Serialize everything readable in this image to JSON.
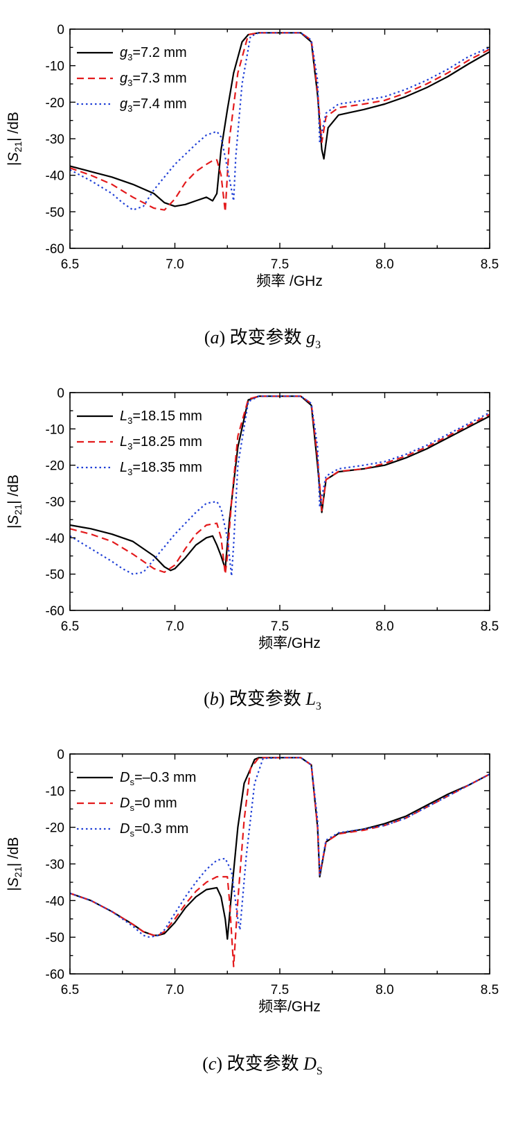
{
  "chart_data": [
    {
      "type": "line",
      "xlabel": "频率 /GHz",
      "ylabel_parts": {
        "pre": "|",
        "S": "S",
        "sub": "21",
        "post": "| /dB"
      },
      "xlim": [
        6.5,
        8.5
      ],
      "ylim": [
        -60,
        0
      ],
      "xticks": [
        "6.5",
        "7.0",
        "7.5",
        "8.0",
        "8.5"
      ],
      "yticks": [
        "0",
        "-10",
        "-20",
        "-30",
        "-40",
        "-50",
        "-60"
      ],
      "legend_position": "top-left",
      "caption": {
        "label": "(a)",
        "text": "改变参数",
        "sym": "g",
        "sub": "3"
      },
      "series": [
        {
          "legend": {
            "sym": "g",
            "sub": "3",
            "value": "=7.2 mm"
          },
          "color": "#000000",
          "dash": "solid",
          "x": [
            6.5,
            6.6,
            6.7,
            6.8,
            6.9,
            6.95,
            7.0,
            7.05,
            7.1,
            7.15,
            7.18,
            7.2,
            7.22,
            7.25,
            7.28,
            7.32,
            7.35,
            7.4,
            7.5,
            7.6,
            7.65,
            7.68,
            7.7,
            7.71,
            7.73,
            7.78,
            7.9,
            8.0,
            8.1,
            8.2,
            8.3,
            8.4,
            8.5
          ],
          "y": [
            -37.5,
            -39,
            -40.5,
            -42.5,
            -45,
            -47.5,
            -48.5,
            -48,
            -47,
            -46,
            -47,
            -45,
            -33,
            -22,
            -12,
            -3.5,
            -1.5,
            -1.0,
            -1.0,
            -1.0,
            -3.5,
            -18,
            -33,
            -35.5,
            -27,
            -23.5,
            -22,
            -20.5,
            -18.5,
            -16,
            -13,
            -9.5,
            -6.2
          ]
        },
        {
          "legend": {
            "sym": "g",
            "sub": "3",
            "value": "=7.3 mm"
          },
          "color": "#e31a1c",
          "dash": "dashed",
          "x": [
            6.5,
            6.6,
            6.7,
            6.8,
            6.9,
            6.95,
            7.0,
            7.05,
            7.1,
            7.15,
            7.18,
            7.2,
            7.22,
            7.24,
            7.26,
            7.3,
            7.35,
            7.4,
            7.5,
            7.6,
            7.65,
            7.68,
            7.7,
            7.72,
            7.78,
            7.9,
            8.0,
            8.1,
            8.2,
            8.3,
            8.4,
            8.5
          ],
          "y": [
            -38,
            -40,
            -42.5,
            -46,
            -49,
            -49.5,
            -46.5,
            -42,
            -39,
            -37,
            -36,
            -35.8,
            -40,
            -50,
            -30,
            -12,
            -1.5,
            -1.0,
            -1.0,
            -1.0,
            -3,
            -17,
            -31,
            -24,
            -21.5,
            -20.5,
            -19.5,
            -17.5,
            -15,
            -12,
            -8.5,
            -5.5
          ]
        },
        {
          "legend": {
            "sym": "g",
            "sub": "3",
            "value": "=7.4 mm"
          },
          "color": "#1f3fd6",
          "dash": "dotted",
          "x": [
            6.5,
            6.6,
            6.7,
            6.75,
            6.8,
            6.85,
            6.9,
            7.0,
            7.1,
            7.15,
            7.2,
            7.22,
            7.25,
            7.28,
            7.29,
            7.32,
            7.36,
            7.4,
            7.5,
            7.6,
            7.65,
            7.68,
            7.69,
            7.72,
            7.78,
            7.9,
            8.0,
            8.1,
            8.2,
            8.3,
            8.4,
            8.5
          ],
          "y": [
            -38.5,
            -41.5,
            -45,
            -47.5,
            -49.5,
            -48.5,
            -44,
            -37,
            -31.5,
            -29,
            -28,
            -29.5,
            -38,
            -47,
            -35,
            -15,
            -2,
            -1.0,
            -1.0,
            -1.0,
            -3,
            -14,
            -31,
            -23,
            -20.5,
            -19.5,
            -18.5,
            -16.5,
            -14,
            -11,
            -7.5,
            -5
          ]
        }
      ]
    },
    {
      "type": "line",
      "xlabel": "频率/GHz",
      "ylabel_parts": {
        "pre": "|",
        "S": "S",
        "sub": "21",
        "post": "| /dB"
      },
      "xlim": [
        6.5,
        8.5
      ],
      "ylim": [
        -60,
        0
      ],
      "xticks": [
        "6.5",
        "7.0",
        "7.5",
        "8.0",
        "8.5"
      ],
      "yticks": [
        "0",
        "-10",
        "-20",
        "-30",
        "-40",
        "-50",
        "-60"
      ],
      "legend_position": "top-left",
      "caption": {
        "label": "(b)",
        "text": "改变参数",
        "sym": "L",
        "sub": "3"
      },
      "series": [
        {
          "legend": {
            "sym": "L",
            "sub": "3",
            "value": "=18.15 mm"
          },
          "color": "#000000",
          "dash": "solid",
          "x": [
            6.5,
            6.6,
            6.7,
            6.8,
            6.9,
            6.95,
            6.98,
            7.0,
            7.05,
            7.1,
            7.15,
            7.18,
            7.2,
            7.22,
            7.24,
            7.26,
            7.3,
            7.35,
            7.4,
            7.5,
            7.6,
            7.65,
            7.68,
            7.7,
            7.72,
            7.78,
            7.9,
            8.0,
            8.1,
            8.2,
            8.3,
            8.4,
            8.5
          ],
          "y": [
            -36.5,
            -37.5,
            -39,
            -41,
            -45,
            -48,
            -49,
            -48.5,
            -45.5,
            -42,
            -40,
            -39.5,
            -42,
            -45,
            -48.5,
            -35,
            -15,
            -2,
            -1.0,
            -1.0,
            -1.0,
            -3.5,
            -20,
            -33,
            -24,
            -21.8,
            -21,
            -20,
            -18,
            -15.5,
            -12.5,
            -9.5,
            -6.5
          ]
        },
        {
          "legend": {
            "sym": "L",
            "sub": "3",
            "value": "=18.25 mm"
          },
          "color": "#e31a1c",
          "dash": "dashed",
          "x": [
            6.5,
            6.6,
            6.7,
            6.8,
            6.9,
            6.95,
            7.0,
            7.05,
            7.1,
            7.15,
            7.2,
            7.22,
            7.24,
            7.25,
            7.27,
            7.3,
            7.35,
            7.4,
            7.5,
            7.6,
            7.65,
            7.68,
            7.7,
            7.72,
            7.78,
            7.9,
            8.0,
            8.1,
            8.2,
            8.3,
            8.4,
            8.5
          ],
          "y": [
            -37.5,
            -39,
            -41,
            -44.5,
            -48.5,
            -49.5,
            -47.5,
            -43,
            -39,
            -36.5,
            -36,
            -40,
            -50,
            -45,
            -30,
            -12,
            -1.8,
            -1.0,
            -1.0,
            -1.0,
            -3,
            -18,
            -32.5,
            -24,
            -21.7,
            -21,
            -19.5,
            -17.5,
            -15,
            -12,
            -9,
            -6
          ]
        },
        {
          "legend": {
            "sym": "L",
            "sub": "3",
            "value": "=18.35 mm"
          },
          "color": "#1f3fd6",
          "dash": "dotted",
          "x": [
            6.5,
            6.6,
            6.7,
            6.75,
            6.8,
            6.85,
            6.9,
            7.0,
            7.1,
            7.15,
            7.2,
            7.22,
            7.25,
            7.27,
            7.28,
            7.3,
            7.35,
            7.4,
            7.5,
            7.6,
            7.65,
            7.68,
            7.69,
            7.72,
            7.78,
            7.9,
            8.0,
            8.1,
            8.2,
            8.3,
            8.4,
            8.5
          ],
          "y": [
            -39.5,
            -43,
            -46.5,
            -48.5,
            -50,
            -49.5,
            -46,
            -39,
            -33,
            -30.5,
            -30,
            -32,
            -40,
            -50.5,
            -42,
            -20,
            -2.5,
            -1.0,
            -1.0,
            -1.0,
            -3,
            -15,
            -31.5,
            -23,
            -21,
            -20,
            -19,
            -17,
            -14.5,
            -11.5,
            -8.5,
            -5.5
          ]
        }
      ]
    },
    {
      "type": "line",
      "xlabel": "频率/GHz",
      "ylabel_parts": {
        "pre": "|",
        "S": "S",
        "sub": "21",
        "post": "| /dB"
      },
      "xlim": [
        6.5,
        8.5
      ],
      "ylim": [
        -60,
        0
      ],
      "xticks": [
        "6.5",
        "7.0",
        "7.5",
        "8.0",
        "8.5"
      ],
      "yticks": [
        "0",
        "-10",
        "-20",
        "-30",
        "-40",
        "-50",
        "-60"
      ],
      "legend_position": "top-left",
      "caption": {
        "label": "(c)",
        "text": "改变参数",
        "sym": "D",
        "sub": "S"
      },
      "series": [
        {
          "legend": {
            "sym": "D",
            "sub": "s",
            "value": "=–0.3 mm"
          },
          "color": "#000000",
          "dash": "solid",
          "x": [
            6.5,
            6.6,
            6.7,
            6.8,
            6.85,
            6.9,
            6.92,
            6.95,
            7.0,
            7.05,
            7.1,
            7.15,
            7.2,
            7.22,
            7.24,
            7.25,
            7.27,
            7.3,
            7.33,
            7.38,
            7.4,
            7.5,
            7.6,
            7.65,
            7.68,
            7.69,
            7.72,
            7.78,
            7.9,
            8.0,
            8.1,
            8.2,
            8.3,
            8.4,
            8.5
          ],
          "y": [
            -38,
            -40,
            -43,
            -46.5,
            -48.5,
            -49.5,
            -49.5,
            -49,
            -46,
            -42,
            -39,
            -37,
            -36.5,
            -39,
            -45,
            -50.5,
            -38,
            -20,
            -8,
            -1.5,
            -1.0,
            -1.0,
            -1.0,
            -3,
            -20,
            -33.5,
            -24,
            -21.7,
            -20.5,
            -19,
            -17,
            -14,
            -11,
            -8.5,
            -5.5
          ]
        },
        {
          "legend": {
            "sym": "D",
            "sub": "s",
            "value": "=0 mm"
          },
          "color": "#e31a1c",
          "dash": "dashed",
          "x": [
            6.5,
            6.6,
            6.7,
            6.8,
            6.85,
            6.9,
            6.92,
            6.95,
            7.0,
            7.05,
            7.1,
            7.15,
            7.2,
            7.25,
            7.26,
            7.28,
            7.3,
            7.33,
            7.36,
            7.4,
            7.5,
            7.6,
            7.65,
            7.68,
            7.69,
            7.72,
            7.78,
            7.9,
            8.0,
            8.1,
            8.2,
            8.3,
            8.4,
            8.5
          ],
          "y": [
            -38,
            -40,
            -43,
            -46.5,
            -48.5,
            -49.5,
            -49.5,
            -48.5,
            -45,
            -41,
            -37.5,
            -35,
            -33.5,
            -33.5,
            -40,
            -58,
            -40,
            -18,
            -4,
            -1.0,
            -1.0,
            -1.0,
            -3,
            -20,
            -33,
            -24,
            -21.8,
            -20.8,
            -19.5,
            -17.5,
            -14.5,
            -11.5,
            -8.5,
            -5.5
          ]
        },
        {
          "legend": {
            "sym": "D",
            "sub": "s",
            "value": "=0.3 mm"
          },
          "color": "#1f3fd6",
          "dash": "dotted",
          "x": [
            6.5,
            6.6,
            6.7,
            6.8,
            6.85,
            6.88,
            6.92,
            6.95,
            7.0,
            7.05,
            7.1,
            7.15,
            7.2,
            7.24,
            7.27,
            7.3,
            7.31,
            7.34,
            7.38,
            7.42,
            7.5,
            7.6,
            7.65,
            7.68,
            7.69,
            7.72,
            7.78,
            7.9,
            8.0,
            8.1,
            8.2,
            8.3,
            8.4,
            8.5
          ],
          "y": [
            -38,
            -40,
            -43,
            -47,
            -49.5,
            -50,
            -49.5,
            -48,
            -43.5,
            -39,
            -35,
            -31.5,
            -29,
            -28.5,
            -32,
            -45,
            -48,
            -28,
            -8,
            -1.2,
            -1.0,
            -1.0,
            -3,
            -18,
            -33,
            -23.5,
            -21.5,
            -20.5,
            -19.5,
            -17.5,
            -14.5,
            -11.5,
            -8.5,
            -5.5
          ]
        }
      ]
    }
  ]
}
